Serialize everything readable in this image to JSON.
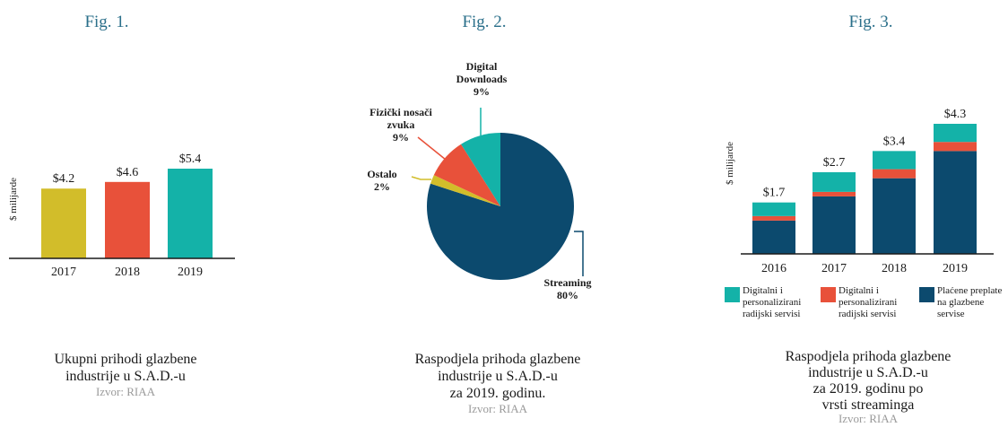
{
  "figures": [
    {
      "fig_label": "Fig. 1.",
      "caption_lines": [
        "Ukupni prihodi glazbene",
        "industrije u S.A.D.-u"
      ],
      "source": "Izvor: RIAA"
    },
    {
      "fig_label": "Fig. 2.",
      "caption_lines": [
        "Raspodjela prihoda glazbene",
        "industrije u S.A.D.-u",
        "za 2019. godinu."
      ],
      "source": "Izvor: RIAA"
    },
    {
      "fig_label": "Fig. 3.",
      "caption_lines": [
        "Raspodjela prihoda glazbene",
        "industrije u S.A.D.-u",
        "za 2019. godinu po",
        "vrsti streaminga"
      ],
      "source": "Izvor: RIAA"
    }
  ],
  "legend3": [
    {
      "label_lines": [
        "Digitalni i",
        "personalizirani",
        "radijski servisi"
      ],
      "color": "#14b2a8"
    },
    {
      "label_lines": [
        "Digitalni i",
        "personalizirani",
        "radijski servisi"
      ],
      "color": "#e8513a"
    },
    {
      "label_lines": [
        "Plaćene preplate",
        "na glazbene",
        "servise"
      ],
      "color": "#0c4a6e"
    }
  ],
  "chart_data": [
    {
      "type": "bar",
      "ylabel": "$ milijarde",
      "categories": [
        "2017",
        "2018",
        "2019"
      ],
      "values": [
        4.2,
        4.6,
        5.4
      ],
      "value_labels": [
        "$4.2",
        "$4.6",
        "$5.4"
      ],
      "colors": [
        "#d2bd2a",
        "#e8513a",
        "#14b2a8"
      ]
    },
    {
      "type": "pie",
      "slices": [
        {
          "label_lines": [
            "Streaming",
            "80%"
          ],
          "value": 80,
          "color": "#0c4a6e"
        },
        {
          "label_lines": [
            "Ostalo",
            "2%"
          ],
          "value": 2,
          "color": "#d2bd2a"
        },
        {
          "label_lines": [
            "Fizički nosači",
            "zvuka",
            "9%"
          ],
          "value": 9,
          "color": "#e8513a"
        },
        {
          "label_lines": [
            "Digital",
            "Downloads",
            "9%"
          ],
          "value": 9,
          "color": "#14b2a8"
        }
      ]
    },
    {
      "type": "bar",
      "stacked": true,
      "ylabel": "$ milijarde",
      "categories": [
        "2016",
        "2017",
        "2018",
        "2019"
      ],
      "totals": [
        1.7,
        2.7,
        3.4,
        4.3
      ],
      "total_labels": [
        "$1.7",
        "$2.7",
        "$3.4",
        "$4.3"
      ],
      "series": [
        {
          "values": [
            1.1,
            1.9,
            2.5,
            3.4
          ],
          "color": "#0c4a6e"
        },
        {
          "values": [
            0.15,
            0.15,
            0.3,
            0.3
          ],
          "color": "#e8513a"
        },
        {
          "values": [
            0.45,
            0.65,
            0.6,
            0.6
          ],
          "color": "#14b2a8"
        }
      ]
    }
  ]
}
